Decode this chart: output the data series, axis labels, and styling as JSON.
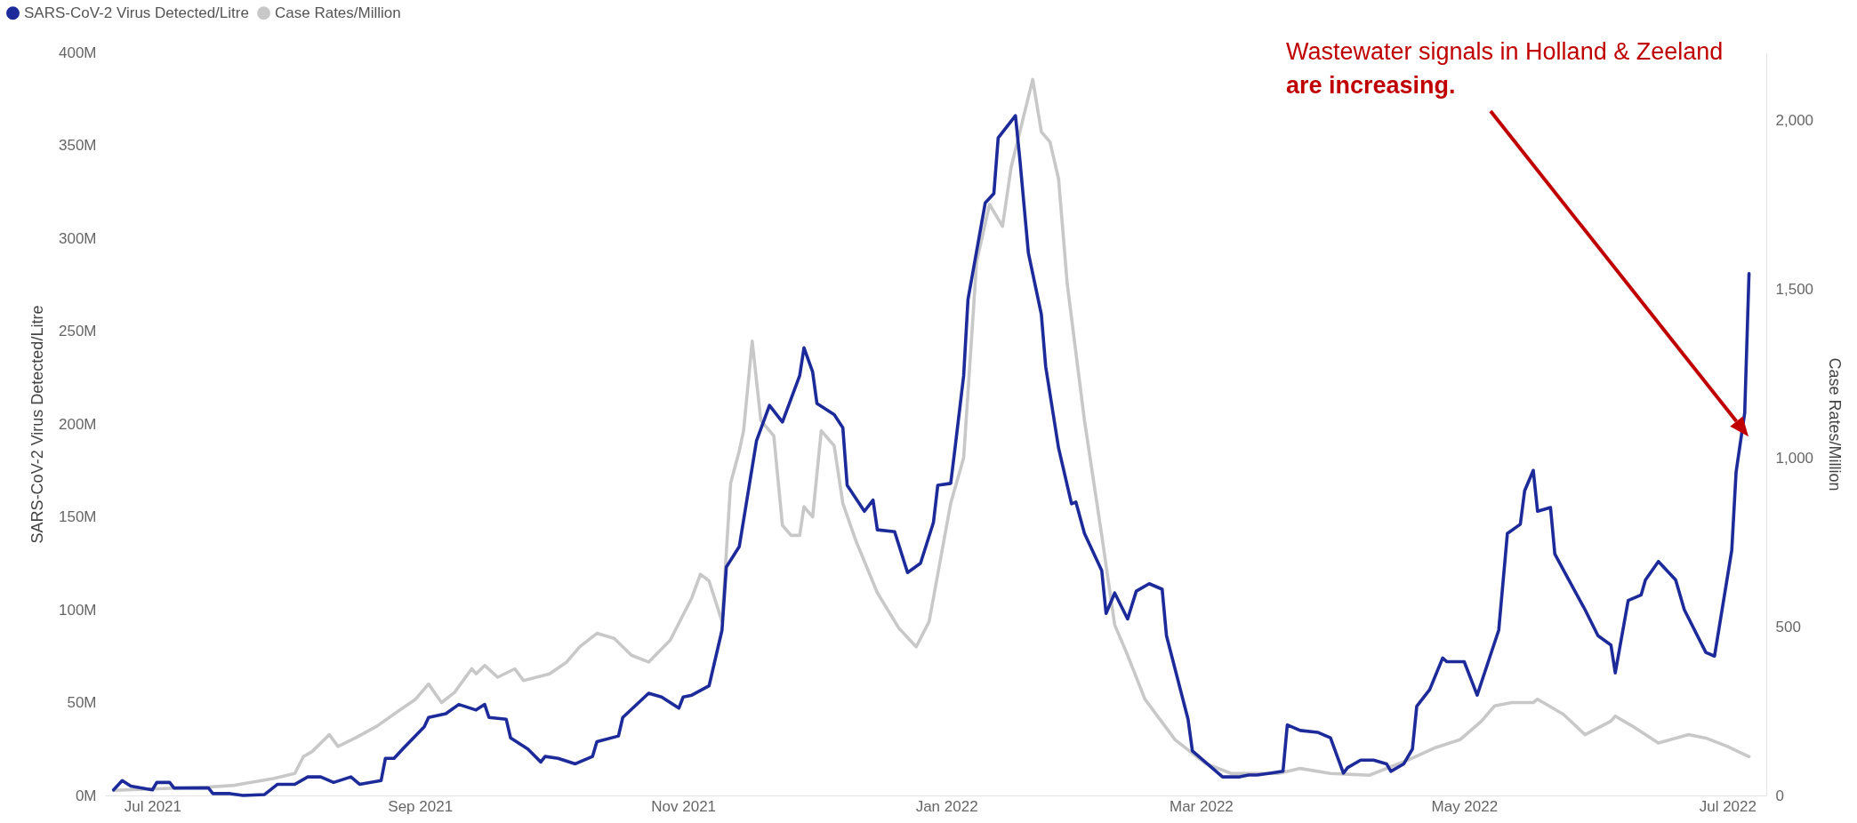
{
  "chart_data": {
    "type": "line",
    "ylabel": "SARS-CoV-2 Virus Detected/Litre",
    "y2label": "Case Rates/Million",
    "xticks": [
      {
        "value": "2021-07-01",
        "label": "Jul 2021"
      },
      {
        "value": "2021-09-01",
        "label": "Sep 2021"
      },
      {
        "value": "2021-11-01",
        "label": "Nov 2021"
      },
      {
        "value": "2022-01-01",
        "label": "Jan 2022"
      },
      {
        "value": "2022-03-01",
        "label": "Mar 2022"
      },
      {
        "value": "2022-05-01",
        "label": "May 2022"
      },
      {
        "value": "2022-07-01",
        "label": "Jul 2022"
      }
    ],
    "xlim": [
      "2021-06-20",
      "2022-07-10"
    ],
    "ylim": [
      0,
      400
    ],
    "yticks": [
      {
        "value": 0,
        "label": "0M"
      },
      {
        "value": 50,
        "label": "50M"
      },
      {
        "value": 100,
        "label": "100M"
      },
      {
        "value": 150,
        "label": "150M"
      },
      {
        "value": 200,
        "label": "200M"
      },
      {
        "value": 250,
        "label": "250M"
      },
      {
        "value": 300,
        "label": "300M"
      },
      {
        "value": 350,
        "label": "350M"
      },
      {
        "value": 400,
        "label": "400M"
      }
    ],
    "y2lim": [
      0,
      2200
    ],
    "y2ticks": [
      0,
      500,
      {
        "value": 1000,
        "label": "1,000"
      },
      {
        "value": 1500,
        "label": "1,500"
      },
      {
        "value": 2000,
        "label": "2,000"
      }
    ],
    "grid": false,
    "legend": "top left",
    "series": [
      {
        "name": "SARS-CoV-2 Virus Detected/Litre",
        "color": "#1c2a9a",
        "axis": "y",
        "x": [
          "2021-06-22",
          "2021-06-24",
          "2021-06-26",
          "2021-07-01",
          "2021-07-02",
          "2021-07-05",
          "2021-07-06",
          "2021-07-14",
          "2021-07-15",
          "2021-07-19",
          "2021-07-22",
          "2021-07-27",
          "2021-07-30",
          "2021-08-03",
          "2021-08-06",
          "2021-08-09",
          "2021-08-12",
          "2021-08-16",
          "2021-08-18",
          "2021-08-23",
          "2021-08-24",
          "2021-08-26",
          "2021-08-28",
          "2021-09-02",
          "2021-09-03",
          "2021-09-07",
          "2021-09-10",
          "2021-09-14",
          "2021-09-16",
          "2021-09-17",
          "2021-09-21",
          "2021-09-22",
          "2021-09-26",
          "2021-09-29",
          "2021-09-30",
          "2021-10-03",
          "2021-10-07",
          "2021-10-11",
          "2021-10-12",
          "2021-10-17",
          "2021-10-18",
          "2021-10-24",
          "2021-10-27",
          "2021-10-31",
          "2021-11-01",
          "2021-11-03",
          "2021-11-07",
          "2021-11-10",
          "2021-11-11",
          "2021-11-14",
          "2021-11-18",
          "2021-11-21",
          "2021-11-24",
          "2021-11-28",
          "2021-11-29",
          "2021-12-01",
          "2021-12-02",
          "2021-12-06",
          "2021-12-08",
          "2021-12-09",
          "2021-12-13",
          "2021-12-15",
          "2021-12-16",
          "2021-12-20",
          "2021-12-23",
          "2021-12-26",
          "2021-12-29",
          "2021-12-30",
          "2022-01-02",
          "2022-01-03",
          "2022-01-05",
          "2022-01-06",
          "2022-01-10",
          "2022-01-12",
          "2022-01-13",
          "2022-01-17",
          "2022-01-18",
          "2022-01-20",
          "2022-01-23",
          "2022-01-24",
          "2022-01-27",
          "2022-01-30",
          "2022-01-31",
          "2022-02-02",
          "2022-02-06",
          "2022-02-07",
          "2022-02-09",
          "2022-02-12",
          "2022-02-14",
          "2022-02-17",
          "2022-02-20",
          "2022-02-21",
          "2022-02-26",
          "2022-02-27",
          "2022-03-03",
          "2022-03-06",
          "2022-03-10",
          "2022-03-12",
          "2022-03-14",
          "2022-03-17",
          "2022-03-20",
          "2022-03-21",
          "2022-03-24",
          "2022-03-28",
          "2022-03-31",
          "2022-04-03",
          "2022-04-04",
          "2022-04-07",
          "2022-04-10",
          "2022-04-13",
          "2022-04-14",
          "2022-04-17",
          "2022-04-19",
          "2022-04-20",
          "2022-04-23",
          "2022-04-26",
          "2022-04-27",
          "2022-05-01",
          "2022-05-04",
          "2022-05-07",
          "2022-05-09",
          "2022-05-11",
          "2022-05-14",
          "2022-05-15",
          "2022-05-17",
          "2022-05-18",
          "2022-05-21",
          "2022-05-22",
          "2022-05-25",
          "2022-05-29",
          "2022-06-01",
          "2022-06-04",
          "2022-06-05",
          "2022-06-08",
          "2022-06-11",
          "2022-06-12",
          "2022-06-15",
          "2022-06-19",
          "2022-06-21",
          "2022-06-26",
          "2022-06-28",
          "2022-07-02",
          "2022-07-03",
          "2022-07-05",
          "2022-07-06"
        ],
        "values": [
          3,
          8,
          5,
          3,
          7,
          7,
          4,
          4,
          1,
          1,
          0,
          0.5,
          6,
          6,
          10,
          10,
          7,
          10,
          6,
          8,
          20,
          20,
          25,
          37,
          42,
          44,
          49,
          46,
          49,
          42,
          41,
          31,
          25,
          18,
          21,
          20,
          17,
          21,
          29,
          32,
          42,
          55,
          53,
          47,
          53,
          54,
          59,
          89,
          123,
          134,
          191,
          210,
          201,
          226,
          241,
          228,
          211,
          205,
          198,
          167,
          153,
          159,
          143,
          142,
          120,
          125,
          147,
          167,
          168,
          187,
          226,
          267,
          319,
          324,
          354,
          366,
          343,
          292,
          259,
          231,
          187,
          157,
          158,
          141,
          121,
          98,
          109,
          95,
          110,
          114,
          111,
          86,
          41,
          24,
          16,
          10,
          10,
          11,
          11,
          12,
          13,
          38,
          35,
          34,
          31,
          12,
          15,
          19,
          19,
          17,
          13,
          17,
          25,
          48,
          57,
          74,
          72,
          72,
          54,
          75,
          89,
          141,
          146,
          164,
          175,
          153,
          155,
          130,
          117,
          100,
          86,
          81,
          66,
          105,
          108,
          116,
          126,
          116,
          100,
          77,
          75,
          132,
          174,
          206,
          281
        ]
      },
      {
        "name": "Case Rates/Million",
        "color": "#c8c8c8",
        "axis": "y2",
        "x": [
          "2021-06-22",
          "2021-07-14",
          "2021-07-20",
          "2021-07-29",
          "2021-08-03",
          "2021-08-05",
          "2021-08-07",
          "2021-08-11",
          "2021-08-13",
          "2021-08-17",
          "2021-08-22",
          "2021-08-27",
          "2021-08-31",
          "2021-09-03",
          "2021-09-06",
          "2021-09-09",
          "2021-09-13",
          "2021-09-14",
          "2021-09-16",
          "2021-09-19",
          "2021-09-23",
          "2021-09-25",
          "2021-10-01",
          "2021-10-05",
          "2021-10-08",
          "2021-10-12",
          "2021-10-16",
          "2021-10-20",
          "2021-10-24",
          "2021-10-29",
          "2021-11-01",
          "2021-11-03",
          "2021-11-05",
          "2021-11-07",
          "2021-11-10",
          "2021-11-12",
          "2021-11-14",
          "2021-11-15",
          "2021-11-17",
          "2021-11-19",
          "2021-11-22",
          "2021-11-24",
          "2021-11-26",
          "2021-11-28",
          "2021-11-29",
          "2021-12-01",
          "2021-12-03",
          "2021-12-06",
          "2021-12-08",
          "2021-12-11",
          "2021-12-16",
          "2021-12-21",
          "2021-12-25",
          "2021-12-28",
          "2022-01-02",
          "2022-01-05",
          "2022-01-08",
          "2022-01-11",
          "2022-01-14",
          "2022-01-16",
          "2022-01-21",
          "2022-01-23",
          "2022-01-25",
          "2022-01-27",
          "2022-01-29",
          "2022-02-02",
          "2022-02-06",
          "2022-02-09",
          "2022-02-12",
          "2022-02-16",
          "2022-02-23",
          "2022-03-02",
          "2022-03-08",
          "2022-03-19",
          "2022-03-24",
          "2022-03-31",
          "2022-04-09",
          "2022-04-18",
          "2022-04-24",
          "2022-04-30",
          "2022-05-05",
          "2022-05-08",
          "2022-05-12",
          "2022-05-17",
          "2022-05-18",
          "2022-05-24",
          "2022-05-29",
          "2022-06-04",
          "2022-06-05",
          "2022-06-09",
          "2022-06-15",
          "2022-06-22",
          "2022-06-26",
          "2022-07-01",
          "2022-07-06"
        ],
        "values": [
          15,
          25,
          30,
          50,
          65,
          115,
          130,
          180,
          145,
          170,
          205,
          250,
          285,
          330,
          275,
          305,
          375,
          360,
          385,
          350,
          375,
          340,
          360,
          395,
          440,
          480,
          465,
          415,
          395,
          460,
          535,
          585,
          655,
          635,
          515,
          925,
          1020,
          1080,
          1345,
          1110,
          1065,
          800,
          770,
          770,
          855,
          825,
          1080,
          1035,
          865,
          755,
          600,
          495,
          440,
          515,
          865,
          1000,
          1580,
          1750,
          1685,
          1860,
          2120,
          1965,
          1935,
          1825,
          1515,
          1110,
          770,
          505,
          415,
          285,
          165,
          95,
          65,
          65,
          80,
          65,
          60,
          105,
          140,
          165,
          220,
          265,
          275,
          275,
          285,
          240,
          180,
          220,
          235,
          205,
          155,
          180,
          170,
          145,
          115
        ]
      }
    ],
    "annotations": [
      "Wastewater signals in Holland & Zeeland",
      "are increasing."
    ]
  }
}
